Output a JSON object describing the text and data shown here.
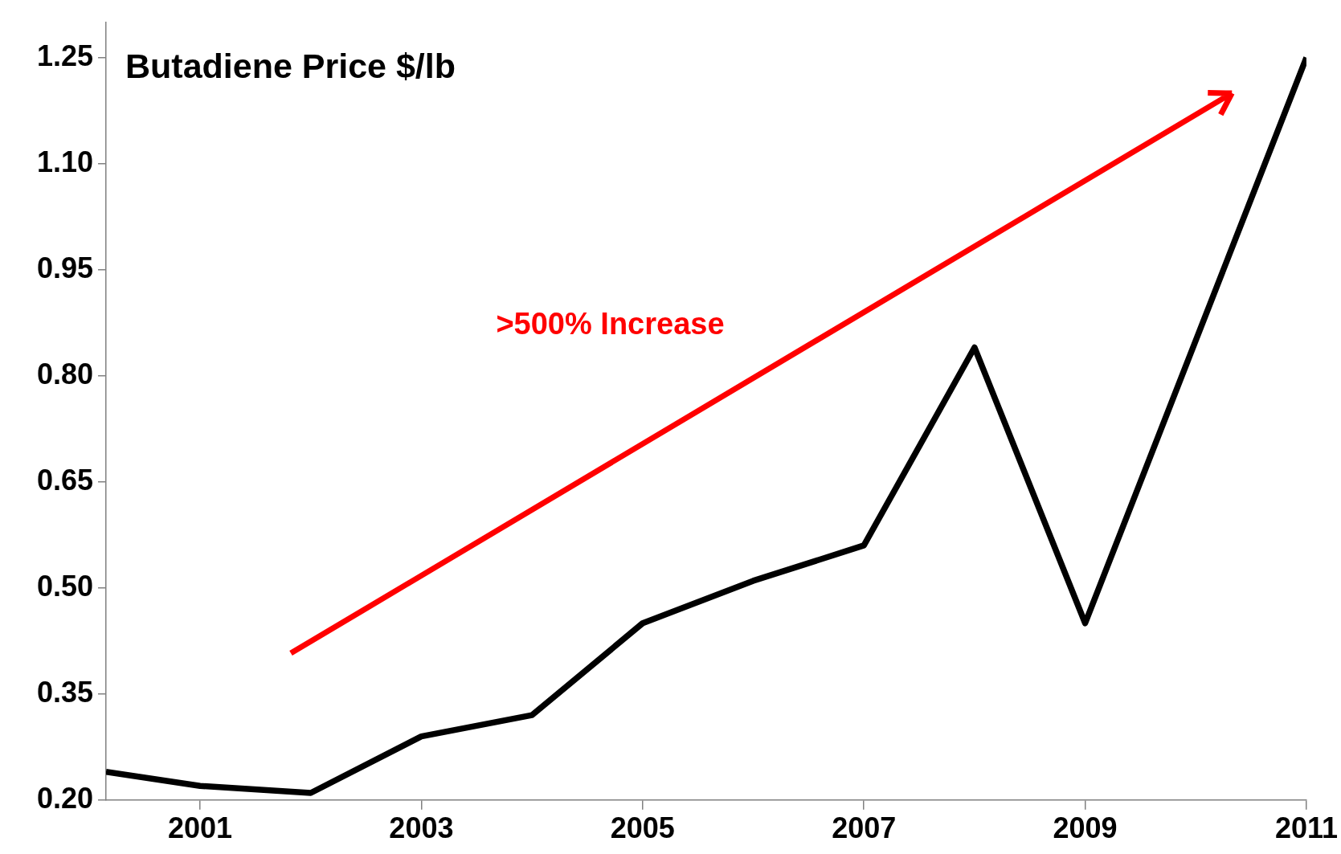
{
  "chart_data": {
    "type": "line",
    "title": "Butadiene Price $/lb",
    "x": [
      2000.15,
      2001,
      2002,
      2003,
      2004,
      2005,
      2006,
      2007,
      2008,
      2009,
      2011
    ],
    "series": [
      {
        "color": "#000000",
        "values": [
          0.24,
          0.22,
          0.21,
          0.29,
          0.32,
          0.45,
          0.51,
          0.56,
          0.84,
          0.45,
          1.25
        ]
      }
    ],
    "xlim": [
      2000.15,
      2011
    ],
    "xticks": [
      2001,
      2003,
      2005,
      2007,
      2009,
      2011
    ],
    "ylim": [
      0.2,
      1.3
    ],
    "yticks": [
      {
        "value": 0.2,
        "label": "0.20"
      },
      0.35,
      {
        "value": 0.5,
        "label": "0.50"
      },
      0.65,
      {
        "value": 0.8,
        "label": "0.80"
      },
      0.95,
      {
        "value": 1.1,
        "label": "1.10"
      },
      1.25
    ],
    "grid": false,
    "legend": false,
    "marker": "none",
    "line_style": "solid",
    "annotations": [
      ">500% Increase"
    ]
  }
}
